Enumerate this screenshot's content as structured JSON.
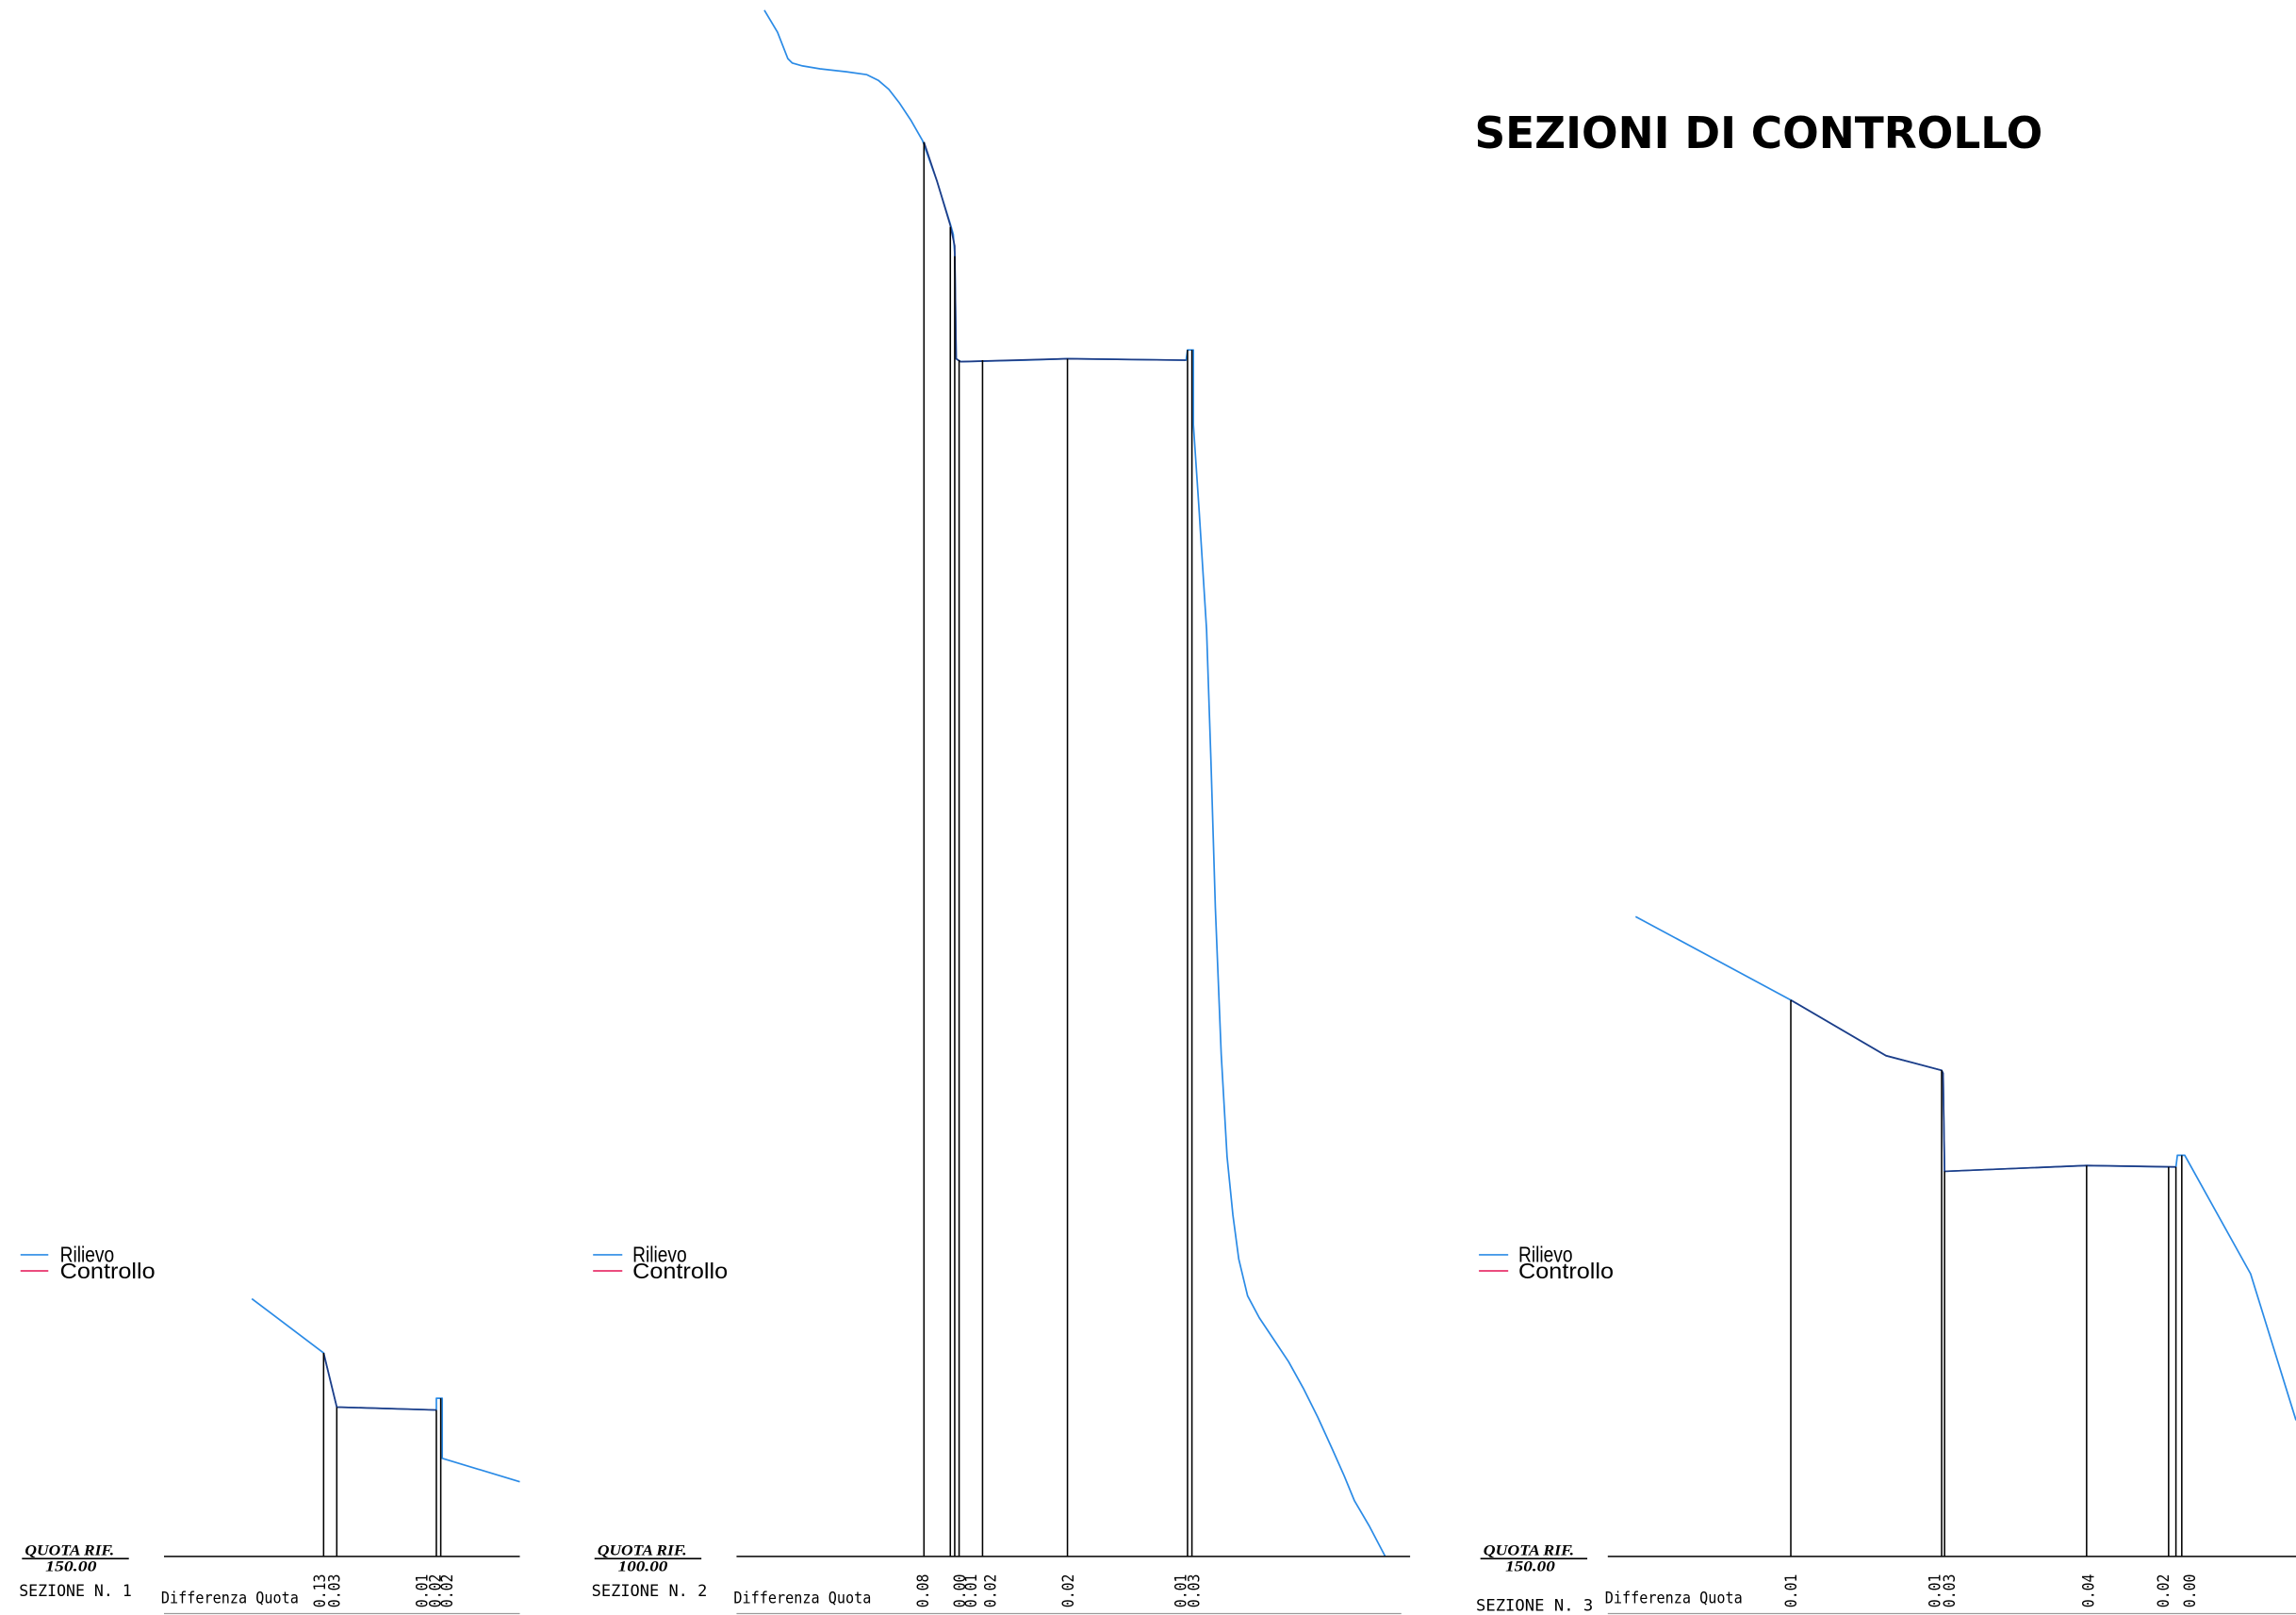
{
  "title": "SEZIONI DI CONTROLLO",
  "legend": {
    "rilievo": {
      "label": "Rilievo",
      "color": "#2b8be6"
    },
    "controllo": {
      "label": "Controllo",
      "color": "#e8336b"
    }
  },
  "sections": [
    {
      "name": "SEZIONE N. 1",
      "quota_rif_label": "QUOTA RIF.",
      "quota_rif_value": "150.00",
      "difference_label": "Differenza Quota",
      "differences": [
        "0.13",
        "0.03",
        "0.01",
        "0.02",
        "0.02"
      ]
    },
    {
      "name": "SEZIONE N. 2",
      "quota_rif_label": "QUOTA RIF.",
      "quota_rif_value": "100.00",
      "difference_label": "Differenza Quota",
      "differences": [
        "0.08",
        "0.00",
        "0.01",
        "0.02",
        "0.02",
        "0.01",
        "0.03"
      ]
    },
    {
      "name": "SEZIONE N. 3",
      "quota_rif_label": "QUOTA RIF.",
      "quota_rif_value": "150.00",
      "difference_label": "Differenza Quota",
      "differences": [
        "0.01",
        "0.01",
        "0.03",
        "0.04",
        "0.02",
        "0.00"
      ]
    }
  ]
}
